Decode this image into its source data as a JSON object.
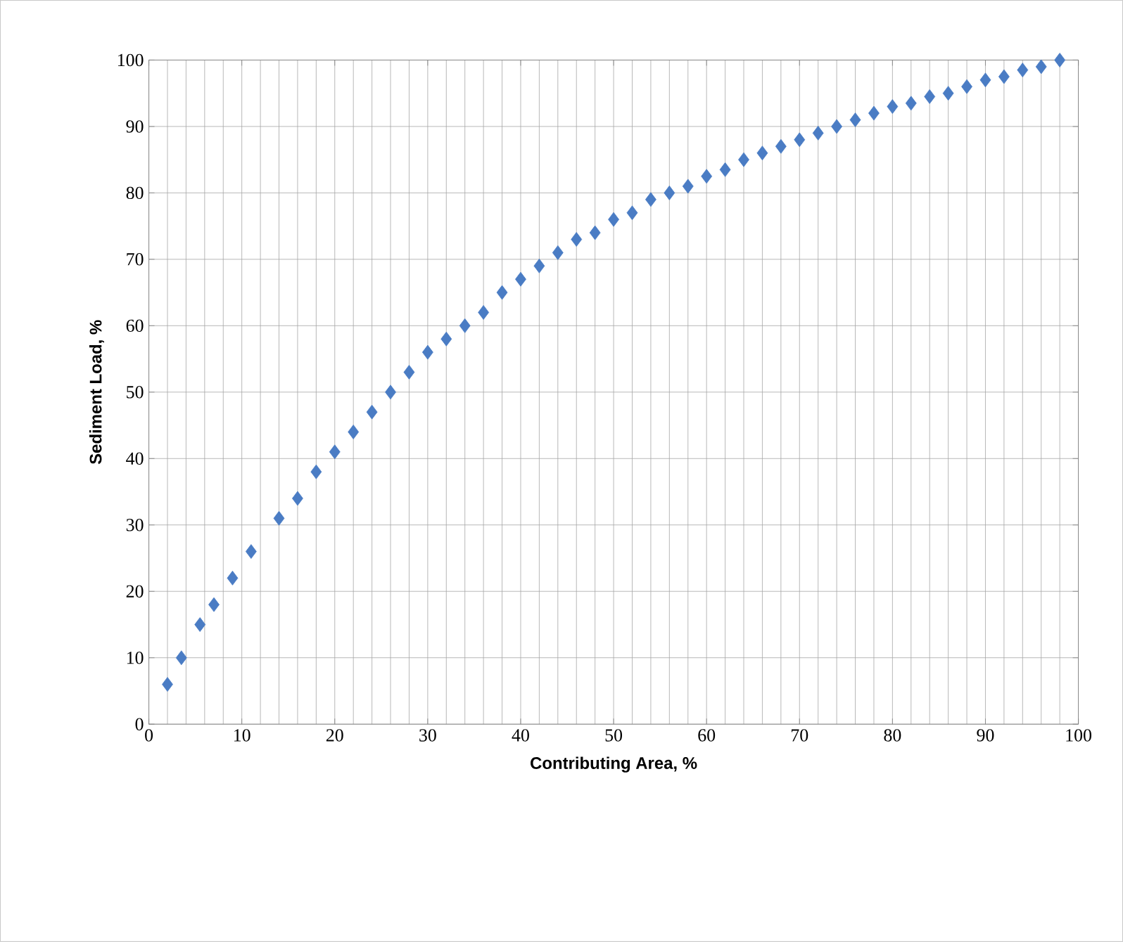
{
  "chart_data": {
    "type": "scatter",
    "xlabel": "Contributing Area, %",
    "ylabel": "Sediment Load, %",
    "xlim": [
      0,
      100
    ],
    "ylim": [
      0,
      100
    ],
    "xticks": [
      0,
      10,
      20,
      30,
      40,
      50,
      60,
      70,
      80,
      90,
      100
    ],
    "yticks": [
      0,
      10,
      20,
      30,
      40,
      50,
      60,
      70,
      80,
      90,
      100
    ],
    "grid": true,
    "marker": "diamond",
    "series": [
      {
        "color": "#4a7cc4",
        "x": [
          2,
          3.5,
          5.5,
          7,
          9,
          11,
          14,
          16,
          18,
          20,
          22,
          24,
          26,
          28,
          30,
          32,
          34,
          36,
          38,
          40,
          42,
          44,
          46,
          48,
          50,
          52,
          54,
          56,
          58,
          60,
          62,
          64,
          66,
          68,
          70,
          72,
          74,
          76,
          78,
          80,
          82,
          84,
          86,
          88,
          90,
          92,
          94,
          96,
          98
        ],
        "values": [
          6,
          10,
          15,
          18,
          22,
          26,
          31,
          34,
          38,
          41,
          44,
          47,
          50,
          53,
          56,
          58,
          60,
          62,
          65,
          67,
          69,
          71,
          73,
          74,
          76,
          77,
          79,
          80,
          81,
          82.5,
          83.5,
          85,
          86,
          87,
          88,
          89,
          90,
          91,
          92,
          93,
          93.5,
          94.5,
          95,
          96,
          97,
          97.5,
          98.5,
          99,
          100
        ]
      }
    ]
  }
}
